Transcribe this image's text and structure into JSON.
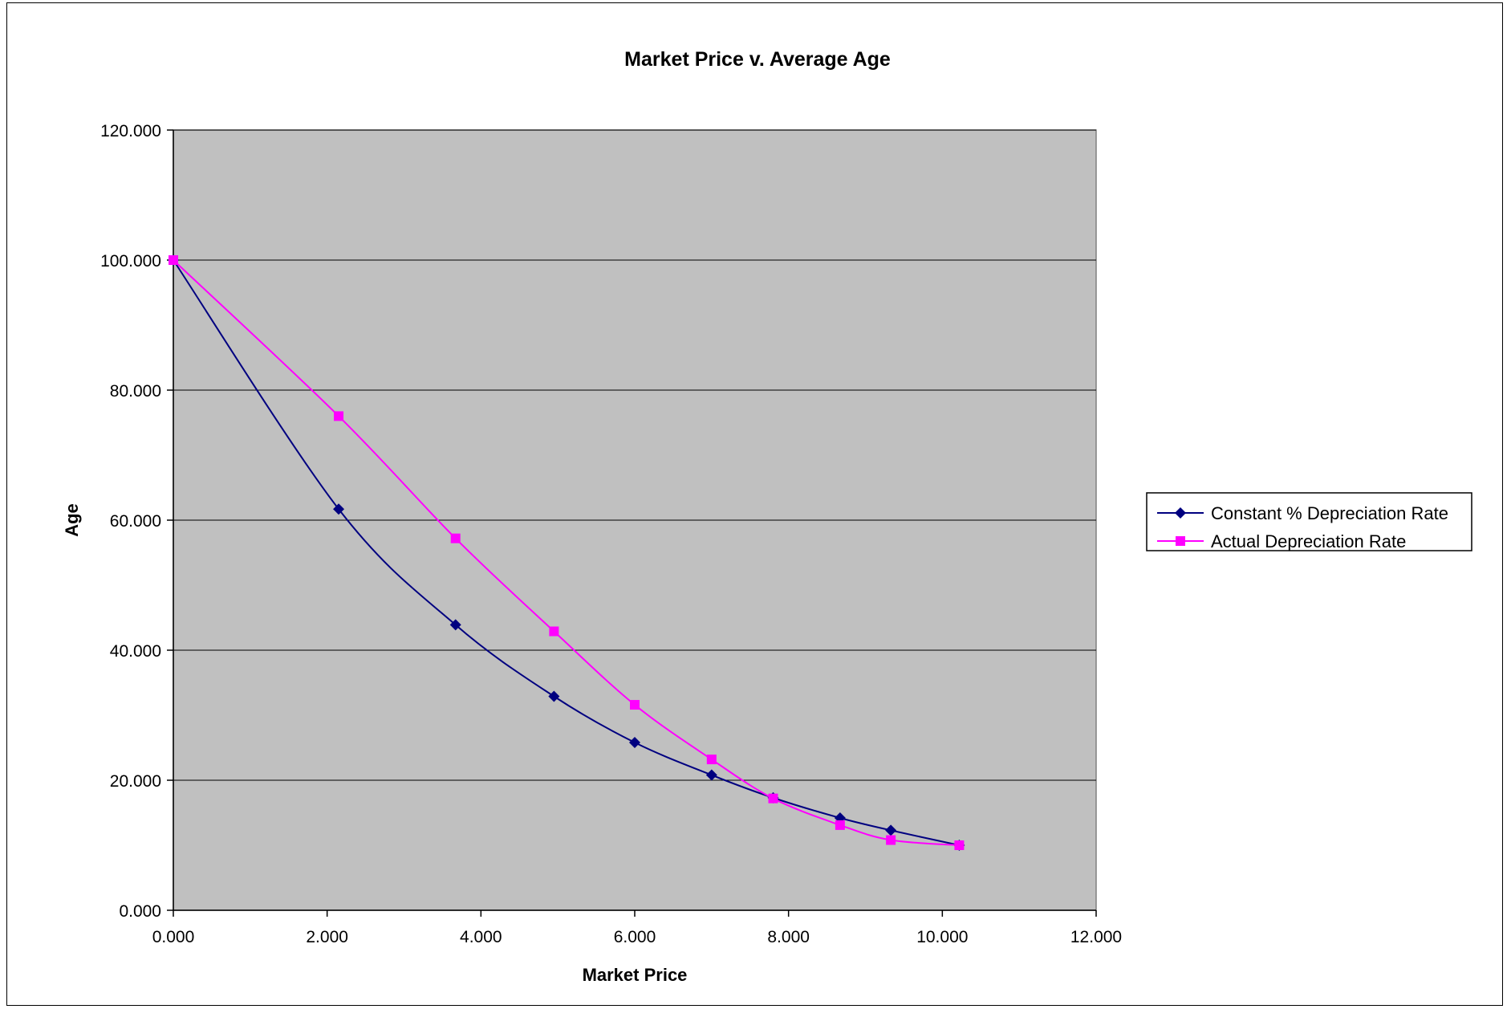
{
  "chart_data": {
    "type": "line",
    "title": "Market Price v. Average Age",
    "xlabel": "Market Price",
    "ylabel": "Age",
    "xlim": [
      0,
      12
    ],
    "ylim": [
      0,
      120
    ],
    "x_ticks": [
      0,
      2,
      4,
      6,
      8,
      10,
      12
    ],
    "y_ticks": [
      0,
      20,
      40,
      60,
      80,
      100,
      120
    ],
    "x_tick_labels": [
      "0.000",
      "2.000",
      "4.000",
      "6.000",
      "8.000",
      "10.000",
      "12.000"
    ],
    "y_tick_labels": [
      "0.000",
      "20.000",
      "40.000",
      "60.000",
      "80.000",
      "100.000",
      "120.000"
    ],
    "grid": "horizontal",
    "plot_background": "#c0c0c0",
    "legend_position": "right",
    "series": [
      {
        "name": "Constant % Depreciation Rate",
        "color": "#000080",
        "marker": "diamond",
        "points": [
          [
            0.0,
            100.0
          ],
          [
            2.15,
            61.7
          ],
          [
            3.67,
            43.9
          ],
          [
            4.95,
            32.9
          ],
          [
            6.0,
            25.8
          ],
          [
            7.0,
            20.8
          ],
          [
            7.8,
            17.3
          ],
          [
            8.67,
            14.2
          ],
          [
            9.33,
            12.3
          ],
          [
            10.22,
            10.0
          ]
        ]
      },
      {
        "name": "Actual Depreciation Rate",
        "color": "#ff00ff",
        "marker": "square",
        "points": [
          [
            0.0,
            100.0
          ],
          [
            2.15,
            76.0
          ],
          [
            3.67,
            57.2
          ],
          [
            4.95,
            42.9
          ],
          [
            6.0,
            31.6
          ],
          [
            7.0,
            23.2
          ],
          [
            7.8,
            17.2
          ],
          [
            8.67,
            13.1
          ],
          [
            9.33,
            10.8
          ],
          [
            10.22,
            10.0
          ]
        ]
      }
    ]
  }
}
